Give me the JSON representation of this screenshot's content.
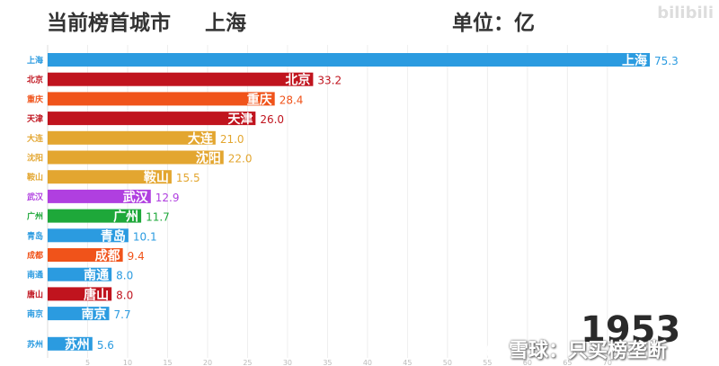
{
  "header": {
    "title": "当前榜首城市",
    "leader": "上海",
    "unit": "单位：亿"
  },
  "watermark_top": "bilibili",
  "watermark_bottom": "雪球：只买榜垄断",
  "year": "1953",
  "colors": {
    "blue": "#2b9be0",
    "darkred": "#c0141e",
    "orange": "#f0531a",
    "gold": "#e3a630",
    "purple": "#b03fe0",
    "green": "#1ea83a",
    "label_gray": "#555555"
  },
  "chart_data": {
    "type": "bar",
    "orientation": "horizontal",
    "categories": [
      "上海",
      "北京",
      "重庆",
      "天津",
      "大连",
      "沈阳",
      "鞍山",
      "武汉",
      "广州",
      "青岛",
      "成都",
      "南通",
      "唐山",
      "南京",
      "苏州"
    ],
    "values": [
      75.3,
      33.2,
      28.4,
      26.0,
      21.0,
      22.0,
      15.5,
      12.9,
      11.7,
      10.1,
      9.4,
      8.0,
      8.0,
      7.7,
      5.6
    ],
    "value_labels": [
      "75.3",
      "33.2",
      "28.4",
      "26.0",
      "21.0",
      "22.0",
      "15.5",
      "12.9",
      "11.7",
      "10.1",
      "9.4",
      "8.0",
      "8.0",
      "7.7",
      "5.6"
    ],
    "bar_colors": [
      "blue",
      "darkred",
      "orange",
      "darkred",
      "gold",
      "gold",
      "gold",
      "purple",
      "green",
      "blue",
      "orange",
      "blue",
      "darkred",
      "blue",
      "blue"
    ],
    "x_ticks": [
      5,
      10,
      15,
      20,
      25,
      30,
      35,
      40,
      45,
      50,
      55,
      60,
      65,
      70
    ],
    "xlim": [
      0,
      75.3
    ],
    "grid": true
  }
}
